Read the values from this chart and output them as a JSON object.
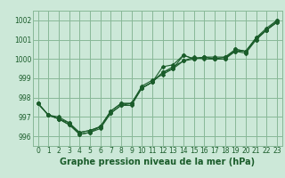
{
  "title": "Graphe pression niveau de la mer (hPa)",
  "bg_color": "#cce8d8",
  "grid_color": "#88b898",
  "line_color": "#1a5c2a",
  "xlim": [
    -0.5,
    23.5
  ],
  "ylim": [
    995.5,
    1002.5
  ],
  "yticks": [
    996,
    997,
    998,
    999,
    1000,
    1001,
    1002
  ],
  "xticks": [
    0,
    1,
    2,
    3,
    4,
    5,
    6,
    7,
    8,
    9,
    10,
    11,
    12,
    13,
    14,
    15,
    16,
    17,
    18,
    19,
    20,
    21,
    22,
    23
  ],
  "series": [
    [
      997.7,
      997.1,
      996.9,
      996.6,
      996.1,
      996.2,
      996.4,
      997.2,
      997.6,
      997.6,
      998.5,
      998.8,
      999.6,
      999.7,
      1000.2,
      1000.0,
      1000.1,
      1000.0,
      1000.0,
      1000.5,
      1000.4,
      1001.1,
      1001.6,
      1002.0
    ],
    [
      997.7,
      997.1,
      997.0,
      996.7,
      996.2,
      996.3,
      996.5,
      997.3,
      997.7,
      997.7,
      998.6,
      998.9,
      999.2,
      999.5,
      999.9,
      1000.0,
      1000.1,
      1000.1,
      1000.1,
      1000.5,
      1000.4,
      1001.1,
      1001.5,
      1002.0
    ],
    [
      997.7,
      997.1,
      996.9,
      996.6,
      996.2,
      996.3,
      996.5,
      997.2,
      997.6,
      997.7,
      998.5,
      998.8,
      999.3,
      999.6,
      999.9,
      1000.1,
      1000.0,
      1000.0,
      1000.1,
      1000.4,
      1000.4,
      1001.0,
      1001.5,
      1001.9
    ],
    [
      997.7,
      997.1,
      996.9,
      996.7,
      996.1,
      996.2,
      996.5,
      997.3,
      997.7,
      997.7,
      998.5,
      998.8,
      999.3,
      999.5,
      1000.2,
      1000.0,
      1000.1,
      1000.0,
      1000.0,
      1000.4,
      1000.3,
      1001.0,
      1001.5,
      1001.9
    ]
  ],
  "tick_fontsize": 5.5,
  "label_fontsize": 7.0
}
